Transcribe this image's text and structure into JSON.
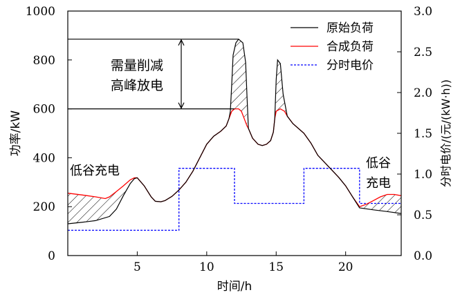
{
  "chart_data": {
    "type": "line",
    "xlabel": "时间/h",
    "ylabel_left": "功率/kW",
    "ylabel_right": "分时电价/(元/(kW·h))",
    "xlim": [
      0,
      24
    ],
    "ylim_left": [
      0,
      1000
    ],
    "ylim_right": [
      0,
      3.0
    ],
    "x_ticks": [
      5,
      10,
      15,
      20
    ],
    "y_left_ticks": [
      0,
      200,
      400,
      600,
      800,
      1000
    ],
    "y_right_ticks": [
      "0.0",
      "0.5",
      "1.0",
      "1.5",
      "2.0",
      "2.5",
      "3.0"
    ],
    "legend": {
      "position": "top-right",
      "entries": [
        {
          "label": "原始负荷",
          "color": "#000000",
          "style": "solid"
        },
        {
          "label": "合成负荷",
          "color": "#ff0000",
          "style": "solid"
        },
        {
          "label": "分时电价",
          "color": "#0000ff",
          "style": "dashed"
        }
      ]
    },
    "annotations": {
      "peak": [
        "需量削减",
        "高峰放电"
      ],
      "valley_left": "低谷充电",
      "valley_right": [
        "低谷",
        "充电"
      ]
    },
    "peak_band": {
      "upper": 885,
      "lower": 600,
      "x_start": 0,
      "x_end": 12.3
    },
    "series": [
      {
        "name": "原始负荷",
        "color": "#000000",
        "axis": "left",
        "points": [
          [
            0,
            130
          ],
          [
            1,
            136
          ],
          [
            2,
            143
          ],
          [
            3,
            160
          ],
          [
            3.5,
            190
          ],
          [
            4,
            245
          ],
          [
            4.5,
            295
          ],
          [
            4.8,
            315
          ],
          [
            5,
            318
          ],
          [
            5.5,
            285
          ],
          [
            6,
            240
          ],
          [
            6.3,
            222
          ],
          [
            6.7,
            220
          ],
          [
            7,
            225
          ],
          [
            7.5,
            242
          ],
          [
            8,
            268
          ],
          [
            8.5,
            300
          ],
          [
            9,
            345
          ],
          [
            9.5,
            400
          ],
          [
            10,
            455
          ],
          [
            10.5,
            488
          ],
          [
            11,
            508
          ],
          [
            11.4,
            530
          ],
          [
            11.6,
            560
          ],
          [
            11.7,
            590
          ],
          [
            11.8,
            700
          ],
          [
            11.9,
            820
          ],
          [
            12.1,
            870
          ],
          [
            12.3,
            885
          ],
          [
            12.6,
            870
          ],
          [
            12.8,
            790
          ],
          [
            12.9,
            650
          ],
          [
            13,
            520
          ],
          [
            13.3,
            480
          ],
          [
            13.7,
            455
          ],
          [
            14,
            450
          ],
          [
            14.3,
            455
          ],
          [
            14.6,
            470
          ],
          [
            14.8,
            505
          ],
          [
            14.9,
            560
          ],
          [
            15,
            720
          ],
          [
            15.1,
            800
          ],
          [
            15.3,
            785
          ],
          [
            15.5,
            660
          ],
          [
            15.8,
            570
          ],
          [
            16.2,
            540
          ],
          [
            17,
            500
          ],
          [
            17.5,
            460
          ],
          [
            18,
            410
          ],
          [
            19,
            350
          ],
          [
            19.5,
            320
          ],
          [
            20,
            285
          ],
          [
            20.5,
            240
          ],
          [
            21,
            195
          ],
          [
            22,
            187
          ],
          [
            23,
            180
          ],
          [
            24,
            172
          ]
        ]
      },
      {
        "name": "合成负荷",
        "color": "#ff0000",
        "axis": "left",
        "points": [
          [
            0,
            255
          ],
          [
            1,
            248
          ],
          [
            2,
            240
          ],
          [
            2.7,
            233
          ],
          [
            3,
            240
          ],
          [
            3.5,
            262
          ],
          [
            4,
            285
          ],
          [
            4.5,
            310
          ],
          [
            4.8,
            318
          ],
          [
            5,
            318
          ],
          [
            5.5,
            285
          ],
          [
            6,
            240
          ],
          [
            6.3,
            222
          ],
          [
            6.7,
            220
          ],
          [
            7,
            225
          ],
          [
            7.5,
            242
          ],
          [
            8,
            268
          ],
          [
            8.5,
            300
          ],
          [
            9,
            345
          ],
          [
            9.5,
            400
          ],
          [
            10,
            455
          ],
          [
            10.5,
            488
          ],
          [
            11,
            508
          ],
          [
            11.4,
            530
          ],
          [
            11.6,
            560
          ],
          [
            11.8,
            590
          ],
          [
            12,
            600
          ],
          [
            12.3,
            600
          ],
          [
            12.5,
            590
          ],
          [
            12.7,
            560
          ],
          [
            12.9,
            530
          ],
          [
            13,
            520
          ],
          [
            13.3,
            480
          ],
          [
            13.7,
            455
          ],
          [
            14,
            450
          ],
          [
            14.3,
            455
          ],
          [
            14.6,
            470
          ],
          [
            14.8,
            505
          ],
          [
            14.9,
            560
          ],
          [
            15,
            590
          ],
          [
            15.3,
            600
          ],
          [
            15.6,
            590
          ],
          [
            15.8,
            570
          ],
          [
            16.2,
            540
          ],
          [
            17,
            500
          ],
          [
            17.5,
            460
          ],
          [
            18,
            410
          ],
          [
            19,
            350
          ],
          [
            19.5,
            320
          ],
          [
            20,
            285
          ],
          [
            20.5,
            240
          ],
          [
            21,
            200
          ],
          [
            21.5,
            210
          ],
          [
            22,
            225
          ],
          [
            22.5,
            240
          ],
          [
            23,
            250
          ],
          [
            23.5,
            250
          ],
          [
            24,
            245
          ]
        ]
      },
      {
        "name": "分时电价",
        "color": "#0000ff",
        "axis": "right",
        "points": [
          [
            0,
            0.31
          ],
          [
            8,
            0.31
          ],
          [
            8,
            1.07
          ],
          [
            12,
            1.07
          ],
          [
            12,
            0.64
          ],
          [
            17,
            0.64
          ],
          [
            17,
            1.07
          ],
          [
            21,
            1.07
          ],
          [
            21,
            0.64
          ],
          [
            24,
            0.64
          ]
        ]
      }
    ]
  }
}
